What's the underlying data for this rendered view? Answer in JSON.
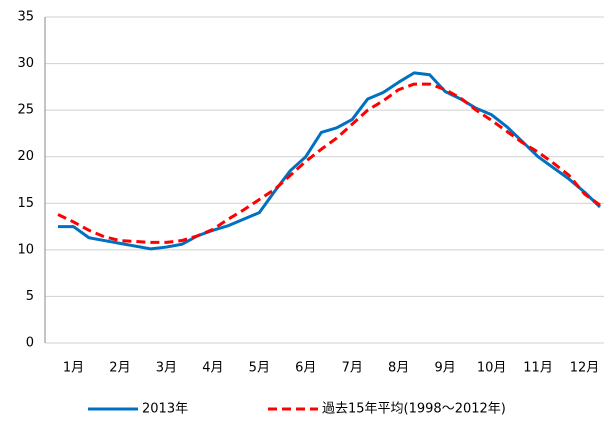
{
  "chart_data": {
    "type": "line",
    "categories": [
      null,
      "1月",
      null,
      null,
      "2月",
      null,
      null,
      "3月",
      null,
      null,
      "4月",
      null,
      null,
      "5月",
      null,
      null,
      "6月",
      null,
      null,
      "7月",
      null,
      null,
      "8月",
      null,
      null,
      "9月",
      null,
      null,
      "10月",
      null,
      null,
      "11月",
      null,
      null,
      "12月",
      null
    ],
    "series": [
      {
        "name": "2013年",
        "color": "#0070c0",
        "dash": false,
        "values": [
          12.5,
          12.5,
          11.3,
          11.0,
          10.7,
          10.4,
          10.1,
          10.3,
          10.6,
          11.5,
          12.1,
          12.6,
          13.3,
          14.0,
          16.3,
          18.5,
          20.0,
          22.6,
          23.1,
          24.0,
          26.2,
          26.9,
          28.0,
          29.0,
          28.8,
          27.0,
          26.2,
          25.2,
          24.5,
          23.2,
          21.6,
          20.0,
          18.8,
          17.6,
          16.2,
          14.6
        ]
      },
      {
        "name": "過去15年平均(1998～2012年)",
        "color": "#ff0000",
        "dash": true,
        "values": [
          13.8,
          13.0,
          12.1,
          11.4,
          11.0,
          10.9,
          10.8,
          10.8,
          11.0,
          11.5,
          12.2,
          13.3,
          14.3,
          15.4,
          16.5,
          18.0,
          19.5,
          20.8,
          22.0,
          23.5,
          25.0,
          26.0,
          27.2,
          27.8,
          27.8,
          27.2,
          26.3,
          25.0,
          23.9,
          22.7,
          21.5,
          20.5,
          19.3,
          18.0,
          16.0,
          14.8
        ]
      }
    ],
    "ylim": [
      0,
      35
    ],
    "yticks": [
      0,
      5,
      10,
      15,
      20,
      25,
      30,
      35
    ],
    "grid": true,
    "legend": "bottom"
  }
}
